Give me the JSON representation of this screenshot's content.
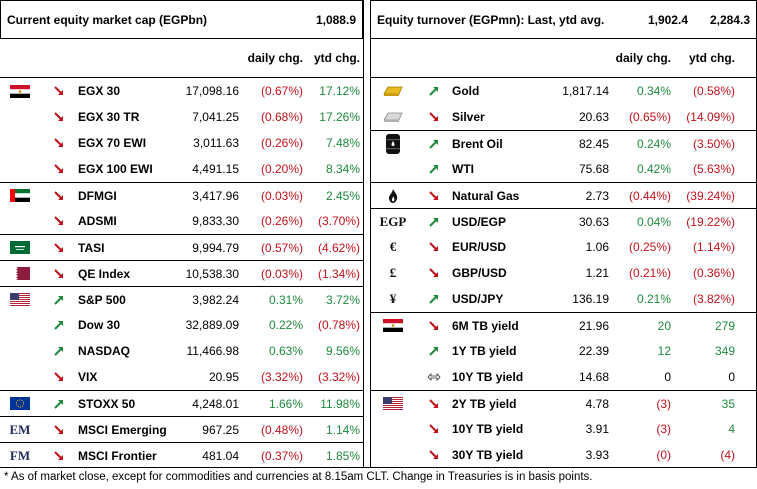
{
  "left": {
    "title": "Current equity market cap (EGPbn)",
    "value": "1,088.9",
    "col_daily": "daily chg.",
    "col_ytd": "ytd chg.",
    "rows": [
      {
        "flag": "egypt-flag",
        "arrow": "down",
        "name": "EGX 30",
        "value": "17,098.16",
        "daily": "(0.67%)",
        "ytd": "17.12%",
        "dcls": "neg",
        "ycls": "pos",
        "sep": true
      },
      {
        "flag": "",
        "arrow": "down",
        "name": "EGX 30 TR",
        "value": "7,041.25",
        "daily": "(0.68%)",
        "ytd": "17.26%",
        "dcls": "neg",
        "ycls": "pos"
      },
      {
        "flag": "",
        "arrow": "down",
        "name": "EGX 70 EWI",
        "value": "3,011.63",
        "daily": "(0.26%)",
        "ytd": "7.48%",
        "dcls": "neg",
        "ycls": "pos"
      },
      {
        "flag": "",
        "arrow": "down",
        "name": "EGX 100 EWI",
        "value": "4,491.15",
        "daily": "(0.20%)",
        "ytd": "8.34%",
        "dcls": "neg",
        "ycls": "pos"
      },
      {
        "flag": "uae-flag",
        "arrow": "down",
        "name": "DFMGI",
        "value": "3,417.96",
        "daily": "(0.03%)",
        "ytd": "2.45%",
        "dcls": "neg",
        "ycls": "pos",
        "sep": true
      },
      {
        "flag": "",
        "arrow": "down",
        "name": "ADSMI",
        "value": "9,833.30",
        "daily": "(0.26%)",
        "ytd": "(3.70%)",
        "dcls": "neg",
        "ycls": "neg"
      },
      {
        "flag": "saudi-flag",
        "arrow": "down",
        "name": "TASI",
        "value": "9,994.79",
        "daily": "(0.57%)",
        "ytd": "(4.62%)",
        "dcls": "neg",
        "ycls": "neg",
        "sep": true
      },
      {
        "flag": "qatar-flag",
        "arrow": "down",
        "name": "QE Index",
        "value": "10,538.30",
        "daily": "(0.03%)",
        "ytd": "(1.34%)",
        "dcls": "neg",
        "ycls": "neg",
        "sep": true
      },
      {
        "flag": "usa-flag",
        "arrow": "up",
        "name": "S&P 500",
        "value": "3,982.24",
        "daily": "0.31%",
        "ytd": "3.72%",
        "dcls": "pos",
        "ycls": "pos",
        "sep": true
      },
      {
        "flag": "",
        "arrow": "up",
        "name": "Dow 30",
        "value": "32,889.09",
        "daily": "0.22%",
        "ytd": "(0.78%)",
        "dcls": "pos",
        "ycls": "neg"
      },
      {
        "flag": "",
        "arrow": "up",
        "name": "NASDAQ",
        "value": "11,466.98",
        "daily": "0.63%",
        "ytd": "9.56%",
        "dcls": "pos",
        "ycls": "pos"
      },
      {
        "flag": "",
        "arrow": "down",
        "name": "VIX",
        "value": "20.95",
        "daily": "(3.32%)",
        "ytd": "(3.32%)",
        "dcls": "neg",
        "ycls": "neg"
      },
      {
        "flag": "eu-flag",
        "arrow": "up",
        "name": "STOXX 50",
        "value": "4,248.01",
        "daily": "1.66%",
        "ytd": "11.98%",
        "dcls": "pos",
        "ycls": "pos",
        "sep": true
      },
      {
        "flag": "em-label",
        "label": "EM",
        "arrow": "down",
        "name": "MSCI Emerging",
        "value": "967.25",
        "daily": "(0.48%)",
        "ytd": "1.14%",
        "dcls": "neg",
        "ycls": "pos",
        "sep": true
      },
      {
        "flag": "fm-label",
        "label": "FM",
        "arrow": "down",
        "name": "MSCI Frontier",
        "value": "481.04",
        "daily": "(0.37%)",
        "ytd": "1.85%",
        "dcls": "neg",
        "ycls": "pos",
        "sep": true
      }
    ]
  },
  "right": {
    "title": "Equity turnover (EGPmn): Last, ytd avg.",
    "value_last": "1,902.4",
    "value_avg": "2,284.3",
    "col_daily": "daily chg.",
    "col_ytd": "ytd chg.",
    "rows": [
      {
        "flag": "gold-bar-icon",
        "arrow": "up",
        "name": "Gold",
        "value": "1,817.14",
        "daily": "0.34%",
        "ytd": "(0.58%)",
        "dcls": "pos",
        "ycls": "neg",
        "sep": true
      },
      {
        "flag": "silver-bar-icon",
        "arrow": "down",
        "name": "Silver",
        "value": "20.63",
        "daily": "(0.65%)",
        "ytd": "(14.09%)",
        "dcls": "neg",
        "ycls": "neg"
      },
      {
        "flag": "oil-barrel-icon",
        "arrow": "up",
        "name": "Brent Oil",
        "value": "82.45",
        "daily": "0.24%",
        "ytd": "(3.50%)",
        "dcls": "pos",
        "ycls": "neg",
        "sep": true
      },
      {
        "flag": "",
        "arrow": "up",
        "name": "WTI",
        "value": "75.68",
        "daily": "0.42%",
        "ytd": "(5.63%)",
        "dcls": "pos",
        "ycls": "neg"
      },
      {
        "flag": "flame-icon",
        "arrow": "down",
        "name": "Natural Gas",
        "value": "2.73",
        "daily": "(0.44%)",
        "ytd": "(39.24%)",
        "dcls": "neg",
        "ycls": "neg",
        "sep": true
      },
      {
        "flag": "egp-label",
        "label": "EGP",
        "arrow": "up",
        "name": "USD/EGP",
        "value": "30.63",
        "daily": "0.04%",
        "ytd": "(19.22%)",
        "dcls": "pos",
        "ycls": "neg",
        "sep": true
      },
      {
        "flag": "euro-label",
        "label": "€",
        "arrow": "down",
        "name": "EUR/USD",
        "value": "1.06",
        "daily": "(0.25%)",
        "ytd": "(1.14%)",
        "dcls": "neg",
        "ycls": "neg"
      },
      {
        "flag": "pound-label",
        "label": "£",
        "arrow": "down",
        "name": "GBP/USD",
        "value": "1.21",
        "daily": "(0.21%)",
        "ytd": "(0.36%)",
        "dcls": "neg",
        "ycls": "neg"
      },
      {
        "flag": "yen-label",
        "label": "¥",
        "arrow": "up",
        "name": "USD/JPY",
        "value": "136.19",
        "daily": "0.21%",
        "ytd": "(3.82%)",
        "dcls": "pos",
        "ycls": "neg"
      },
      {
        "flag": "egypt-flag",
        "arrow": "down",
        "name": "6M TB yield",
        "value": "21.96",
        "daily": "20",
        "ytd": "279",
        "dcls": "pos",
        "ycls": "pos",
        "sep": true
      },
      {
        "flag": "",
        "arrow": "up",
        "name": "1Y TB yield",
        "value": "22.39",
        "daily": "12",
        "ytd": "349",
        "dcls": "pos",
        "ycls": "pos"
      },
      {
        "flag": "",
        "arrow": "flat",
        "name": "10Y TB yield",
        "value": "14.68",
        "daily": "0",
        "ytd": "0",
        "dcls": "neu",
        "ycls": "neu"
      },
      {
        "flag": "usa-flag",
        "arrow": "down",
        "name": "2Y TB yield",
        "value": "4.78",
        "daily": "(3)",
        "ytd": "35",
        "dcls": "neg",
        "ycls": "pos",
        "sep": true
      },
      {
        "flag": "",
        "arrow": "down",
        "name": "10Y TB yield",
        "value": "3.91",
        "daily": "(3)",
        "ytd": "4",
        "dcls": "neg",
        "ycls": "pos"
      },
      {
        "flag": "",
        "arrow": "down",
        "name": "30Y TB yield",
        "value": "3.93",
        "daily": "(0)",
        "ytd": "(4)",
        "dcls": "neg",
        "ycls": "neg"
      }
    ]
  },
  "footer": "* As of market close, except for commodities and currencies at 8.15am CLT. Change in Treasuries is in basis points.",
  "colors": {
    "positive": "#1e8a3c",
    "negative": "#c0121a",
    "border": "#000000"
  }
}
